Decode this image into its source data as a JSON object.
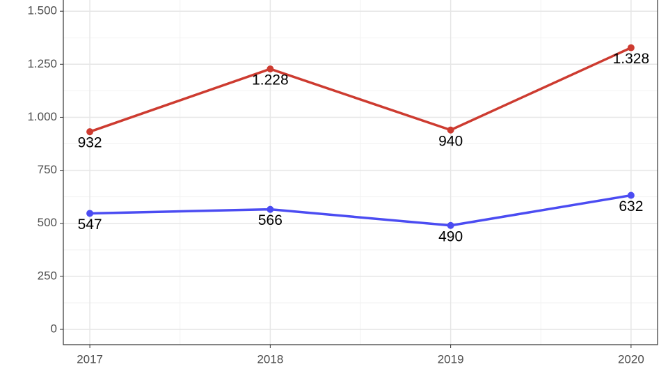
{
  "chart_data": {
    "type": "line",
    "x": [
      2017,
      2018,
      2019,
      2020
    ],
    "xlim": [
      2016.853,
      2020.147
    ],
    "xticks": [
      2017,
      2018,
      2019,
      2020
    ],
    "ylim": [
      -72,
      1553
    ],
    "yticks": [
      0,
      250,
      500,
      750,
      {
        "value": 1000,
        "label": "1.000"
      },
      {
        "value": 1250,
        "label": "1.250"
      },
      {
        "value": 1500,
        "label": "1.500"
      }
    ],
    "grid": true,
    "series": [
      {
        "color": "#cd3b30",
        "values": [
          932,
          1228,
          940,
          1328
        ],
        "value_labels": [
          "932",
          "1.228",
          "940",
          "1.328"
        ]
      },
      {
        "color": "#4b4cf2",
        "values": [
          547,
          566,
          490,
          632
        ]
      }
    ]
  }
}
